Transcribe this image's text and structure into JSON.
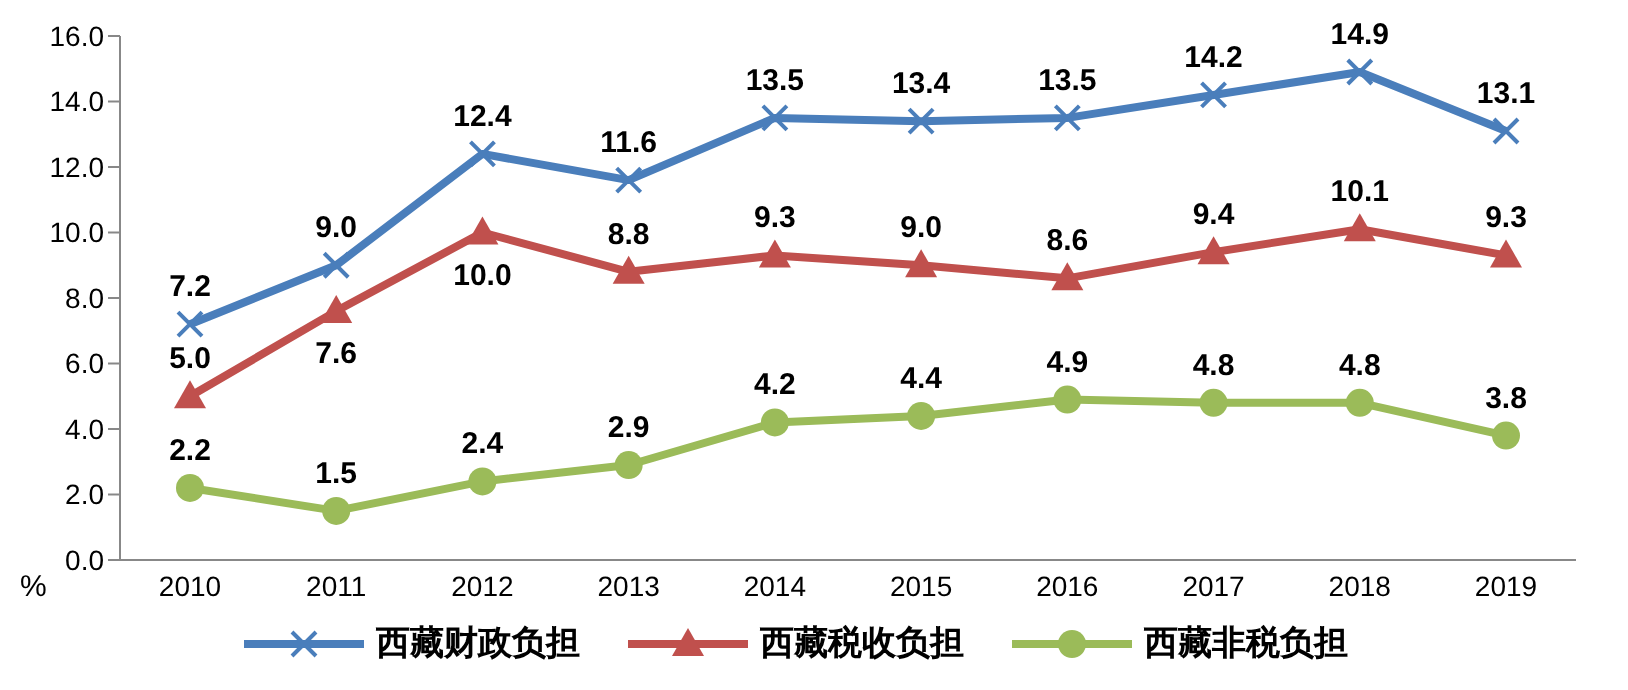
{
  "chart_data": {
    "type": "line",
    "categories": [
      "2010",
      "2011",
      "2012",
      "2013",
      "2014",
      "2015",
      "2016",
      "2017",
      "2018",
      "2019"
    ],
    "series": [
      {
        "name": "西藏财政负担",
        "color": "#4a7ebb",
        "marker": "cross",
        "values": [
          7.2,
          9.0,
          12.4,
          11.6,
          13.5,
          13.4,
          13.5,
          14.2,
          14.9,
          13.1
        ],
        "value_labels": [
          "7.2",
          "9.0",
          "12.4",
          "11.6",
          "13.5",
          "13.4",
          "13.5",
          "14.2",
          "14.9",
          "13.1"
        ]
      },
      {
        "name": "西藏税收负担",
        "color": "#c0504d",
        "marker": "triangle",
        "values": [
          5.0,
          7.6,
          10.0,
          8.8,
          9.3,
          9.0,
          8.6,
          9.4,
          10.1,
          9.3
        ],
        "value_labels": [
          "5.0",
          "7.6",
          "10.0",
          "8.8",
          "9.3",
          "9.0",
          "8.6",
          "9.4",
          "10.1",
          "9.3"
        ]
      },
      {
        "name": "西藏非税负担",
        "color": "#9bbb59",
        "marker": "circle",
        "values": [
          2.2,
          1.5,
          2.4,
          2.9,
          4.2,
          4.4,
          4.9,
          4.8,
          4.8,
          3.8
        ],
        "value_labels": [
          "2.2",
          "1.5",
          "2.4",
          "2.9",
          "4.2",
          "4.4",
          "4.9",
          "4.8",
          "4.8",
          "3.8"
        ]
      }
    ],
    "ylim": [
      0,
      16
    ],
    "yticks": [
      {
        "value": 0,
        "label": "0.0"
      },
      {
        "value": 2,
        "label": "2.0"
      },
      {
        "value": 4,
        "label": "4.0"
      },
      {
        "value": 6,
        "label": "6.0"
      },
      {
        "value": 8,
        "label": "8.0"
      },
      {
        "value": 10,
        "label": "10.0"
      },
      {
        "value": 12,
        "label": "12.0"
      },
      {
        "value": 14,
        "label": "14.0"
      },
      {
        "value": 16,
        "label": "16.0"
      }
    ],
    "annotations": [
      "%"
    ],
    "legend": "bottom",
    "grid": false,
    "line_style": "solid"
  }
}
